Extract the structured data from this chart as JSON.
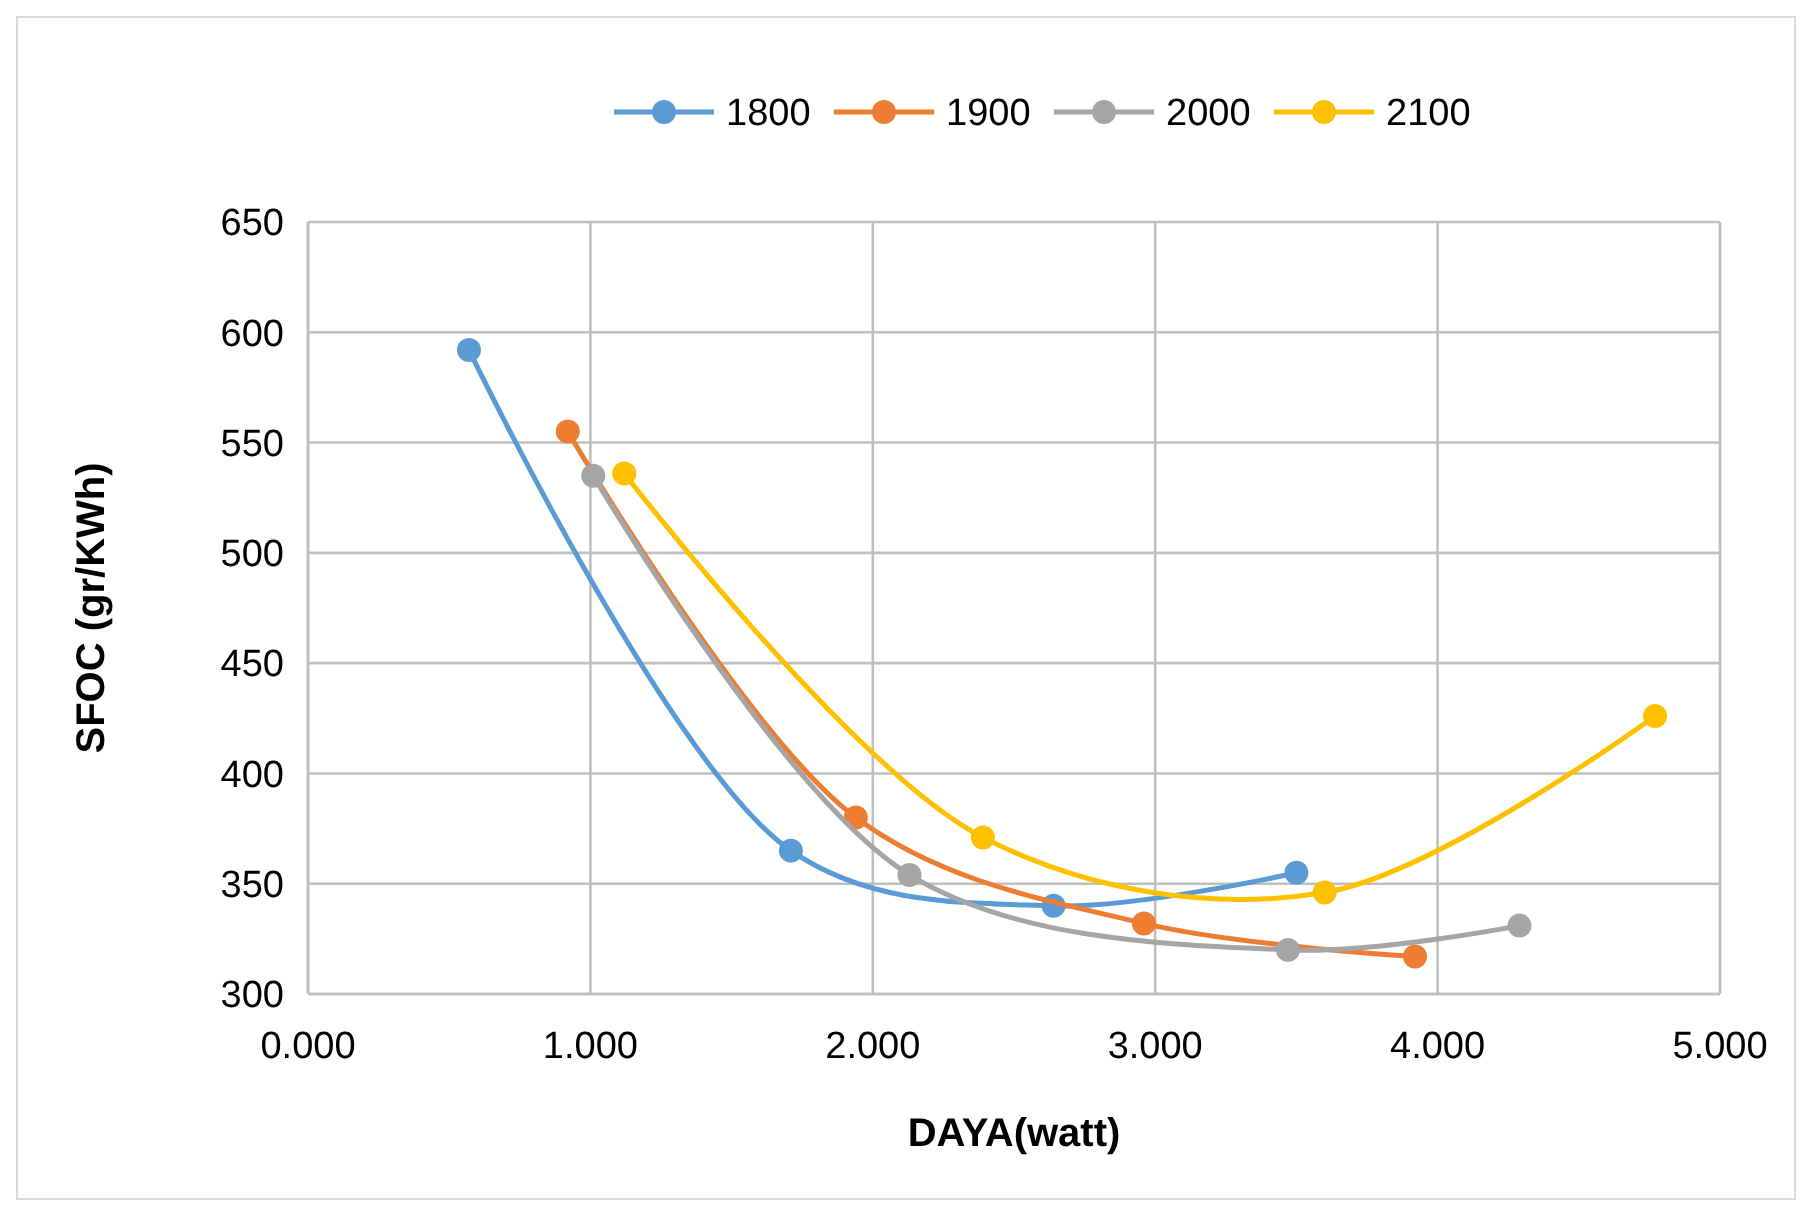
{
  "chart_data": {
    "type": "line",
    "xlabel": "DAYA(watt)",
    "ylabel": "SFOC (gr/KWh)",
    "xlim": [
      0,
      5
    ],
    "xticks": [
      {
        "value": 0,
        "label": "0.000"
      },
      {
        "value": 1,
        "label": "1.000"
      },
      {
        "value": 2,
        "label": "2.000"
      },
      {
        "value": 3,
        "label": "3.000"
      },
      {
        "value": 4,
        "label": "4.000"
      },
      {
        "value": 5,
        "label": "5.000"
      }
    ],
    "ylim": [
      300,
      650
    ],
    "yticks": [
      300,
      350,
      400,
      450,
      500,
      550,
      600,
      650
    ],
    "grid": true,
    "legend": "top",
    "marker": "circle",
    "line_style": "solid",
    "series": [
      {
        "name": "1800",
        "color": "#5b9bd5",
        "x": [
          0.57,
          1.71,
          2.64,
          3.5
        ],
        "values": [
          592,
          365,
          340,
          355
        ]
      },
      {
        "name": "1900",
        "color": "#ed7d31",
        "x": [
          0.92,
          1.94,
          2.96,
          3.92
        ],
        "values": [
          555,
          380,
          332,
          317
        ]
      },
      {
        "name": "2000",
        "color": "#a5a5a5",
        "x": [
          1.01,
          2.13,
          3.47,
          4.29
        ],
        "values": [
          535,
          354,
          320,
          331
        ]
      },
      {
        "name": "2100",
        "color": "#ffc000",
        "x": [
          1.12,
          2.39,
          3.6,
          4.77
        ],
        "values": [
          536,
          371,
          346,
          426
        ]
      }
    ]
  }
}
